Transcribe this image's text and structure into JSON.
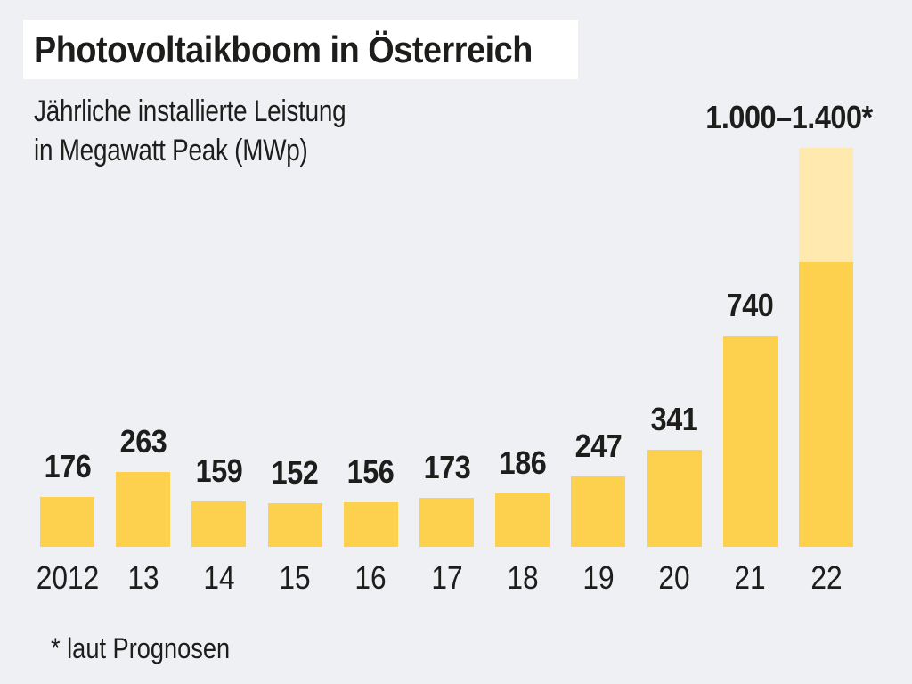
{
  "chart_data": {
    "type": "bar",
    "title": "Photovoltaikboom in Österreich",
    "subtitle_lines": [
      "Jährliche installierte Leistung",
      "in Megawatt Peak (MWp)"
    ],
    "footnote": "* laut Prognosen",
    "unit": "MWp",
    "categories": [
      "2012",
      "13",
      "14",
      "15",
      "16",
      "17",
      "18",
      "19",
      "20",
      "21",
      "22"
    ],
    "bars": [
      {
        "category": "2012",
        "value": 176,
        "label": "176"
      },
      {
        "category": "13",
        "value": 263,
        "label": "263"
      },
      {
        "category": "14",
        "value": 159,
        "label": "159"
      },
      {
        "category": "15",
        "value": 152,
        "label": "152"
      },
      {
        "category": "16",
        "value": 156,
        "label": "156"
      },
      {
        "category": "17",
        "value": 173,
        "label": "173"
      },
      {
        "category": "18",
        "value": 186,
        "label": "186"
      },
      {
        "category": "19",
        "value": 247,
        "label": "247"
      },
      {
        "category": "20",
        "value": 341,
        "label": "341"
      },
      {
        "category": "21",
        "value": 740,
        "label": "740"
      },
      {
        "category": "22",
        "value_min": 1000,
        "value_max": 1400,
        "label": "1.000–1.400*",
        "forecast": true
      }
    ],
    "ylim": [
      0,
      1400
    ],
    "grid": false,
    "legend": "none",
    "value_labels": true,
    "colors": {
      "background": "#EFF0F4",
      "bar": "#FDD14D",
      "forecast_fill": "#FFE9AE",
      "text": "#1D1D1B",
      "title_background": "#FFFFFF"
    }
  }
}
